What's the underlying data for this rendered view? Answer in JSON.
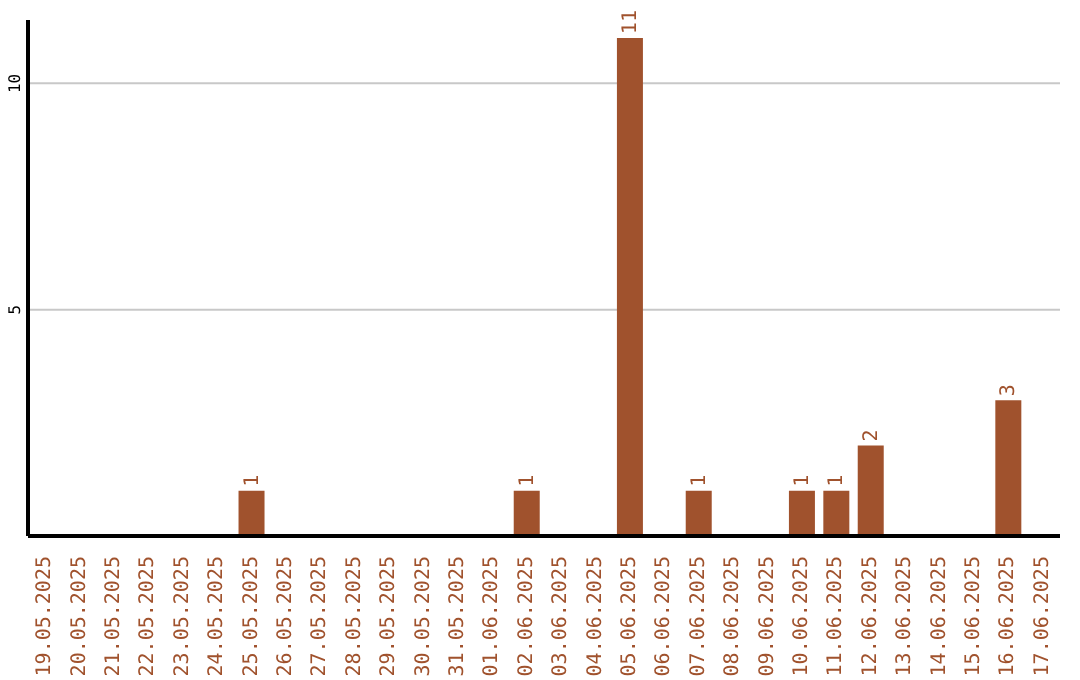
{
  "chart_data": {
    "type": "bar",
    "categories": [
      "19.05.2025",
      "20.05.2025",
      "21.05.2025",
      "22.05.2025",
      "23.05.2025",
      "24.05.2025",
      "25.05.2025",
      "26.05.2025",
      "27.05.2025",
      "28.05.2025",
      "29.05.2025",
      "30.05.2025",
      "31.05.2025",
      "01.06.2025",
      "02.06.2025",
      "03.06.2025",
      "04.06.2025",
      "05.06.2025",
      "06.06.2025",
      "07.06.2025",
      "08.06.2025",
      "09.06.2025",
      "10.06.2025",
      "11.06.2025",
      "12.06.2025",
      "13.06.2025",
      "14.06.2025",
      "15.06.2025",
      "16.06.2025",
      "17.06.2025"
    ],
    "values": [
      0,
      0,
      0,
      0,
      0,
      0,
      1,
      0,
      0,
      0,
      0,
      0,
      0,
      0,
      1,
      0,
      0,
      11,
      0,
      1,
      0,
      0,
      1,
      1,
      2,
      0,
      0,
      0,
      3,
      0
    ],
    "value_labels": [
      null,
      null,
      null,
      null,
      null,
      null,
      "1",
      null,
      null,
      null,
      null,
      null,
      null,
      null,
      "1",
      null,
      null,
      "11",
      null,
      "1",
      null,
      null,
      "1",
      "1",
      "2",
      null,
      null,
      null,
      "3",
      null
    ],
    "color": "#a0522d",
    "ylim": [
      0,
      11.4
    ],
    "yticks": [
      5,
      10
    ],
    "grid": "y",
    "legend": false
  }
}
